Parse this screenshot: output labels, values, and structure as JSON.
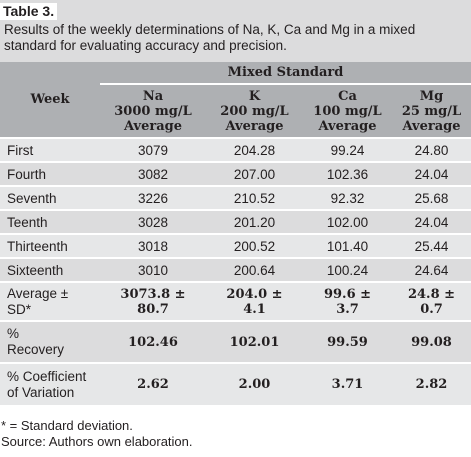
{
  "table_label": "Table 3.",
  "caption": "Results of the weekly determinations of Na, K, Ca and Mg in a mixed standard for evaluating accuracy and precision.",
  "header": {
    "week": "Week",
    "group": "Mixed Standard",
    "columns": [
      {
        "element": "Na",
        "conc": "3000 mg/L",
        "stat": "Average"
      },
      {
        "element": "K",
        "conc": "200 mg/L",
        "stat": "Average"
      },
      {
        "element": "Ca",
        "conc": "100 mg/L",
        "stat": "Average"
      },
      {
        "element": "Mg",
        "conc": "25 mg/L",
        "stat": "Average"
      }
    ]
  },
  "rows": [
    {
      "label": "First",
      "values": [
        "3079",
        "204.28",
        "99.24",
        "24.80"
      ]
    },
    {
      "label": "Fourth",
      "values": [
        "3082",
        "207.00",
        "102.36",
        "24.04"
      ]
    },
    {
      "label": "Seventh",
      "values": [
        "3226",
        "210.52",
        "92.32",
        "25.68"
      ]
    },
    {
      "label": "Teenth",
      "values": [
        "3028",
        "201.20",
        "102.00",
        "24.04"
      ]
    },
    {
      "label": "Thirteenth",
      "values": [
        "3018",
        "200.52",
        "101.40",
        "25.44"
      ]
    },
    {
      "label": "Sixteenth",
      "values": [
        "3010",
        "200.64",
        "100.24",
        "24.64"
      ]
    }
  ],
  "summary": [
    {
      "label_l1": "Average ±",
      "label_l2": "SD*",
      "values": [
        [
          "3073.8 ±",
          "80.7"
        ],
        [
          "204.0 ±",
          "4.1"
        ],
        [
          "99.6 ±",
          "3.7"
        ],
        [
          "24.8 ±",
          "0.7"
        ]
      ]
    },
    {
      "label_l1": "%",
      "label_l2": "Recovery",
      "values": [
        [
          "102.46"
        ],
        [
          "102.01"
        ],
        [
          "99.59"
        ],
        [
          "99.08"
        ]
      ]
    },
    {
      "label_l1": "% Coefficient",
      "label_l2": "of Variation",
      "values": [
        [
          "2.62"
        ],
        [
          "2.00"
        ],
        [
          "3.71"
        ],
        [
          "2.82"
        ]
      ]
    }
  ],
  "footnote": "* = Standard deviation.",
  "source": "Source: Authors own elaboration."
}
